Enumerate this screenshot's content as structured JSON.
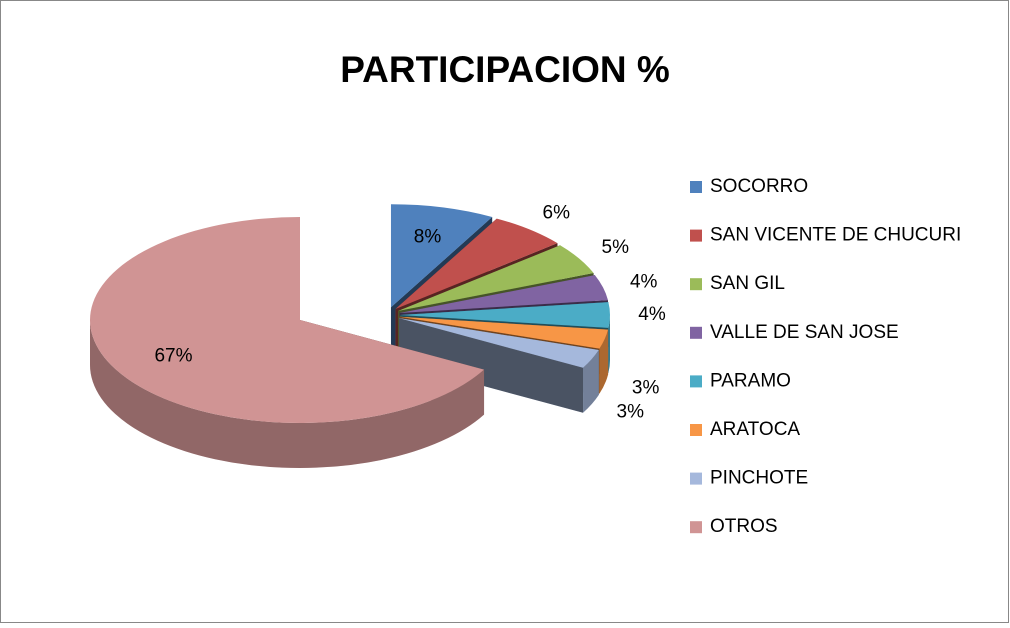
{
  "chart_data": {
    "type": "pie3d",
    "title": "PARTICIPACION %",
    "categories": [
      "SOCORRO",
      "SAN VICENTE DE CHUCURI",
      "SAN GIL",
      "VALLE DE SAN JOSE",
      "PARAMO",
      "ARATOCA",
      "PINCHOTE",
      "OTROS"
    ],
    "values": [
      8,
      6,
      5,
      4,
      4,
      3,
      3,
      67
    ],
    "value_labels": [
      "8%",
      "6%",
      "5%",
      "4%",
      "4%",
      "3%",
      "3%",
      "67%"
    ],
    "colors": [
      "#4f81bd",
      "#c0504d",
      "#9bbb59",
      "#8064a2",
      "#4bacc6",
      "#f79646",
      "#a5b8dc",
      "#d09494"
    ],
    "legend": "right"
  }
}
